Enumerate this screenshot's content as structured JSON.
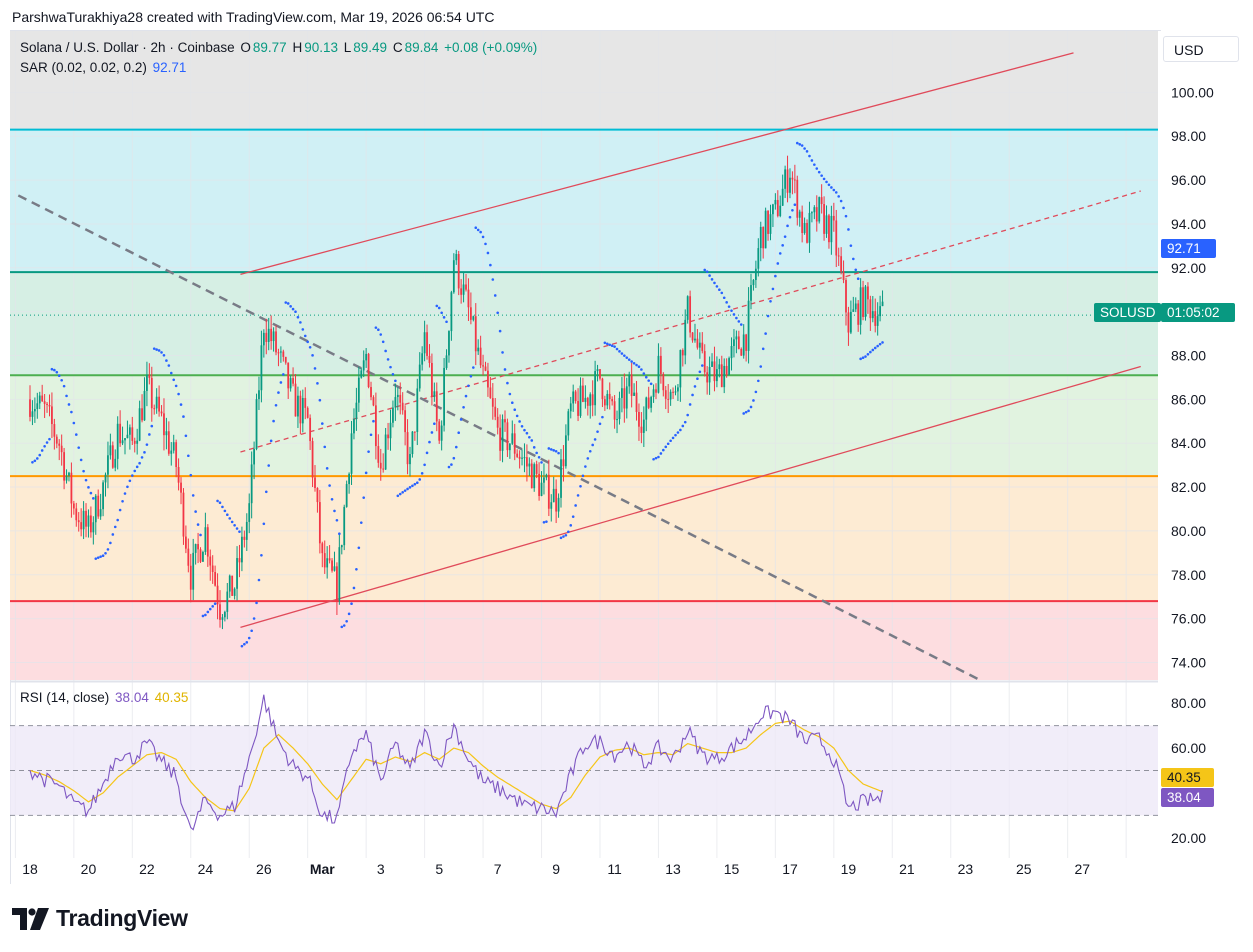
{
  "header": {
    "caption": "ParshwaTurakhiya28 created with TradingView.com, Mar 19, 2026 06:54 UTC"
  },
  "legend": {
    "symbol": "Solana / U.S. Dollar · 2h · Coinbase",
    "o_key": "O",
    "o_val": "89.77",
    "h_key": "H",
    "h_val": "90.13",
    "l_key": "L",
    "l_val": "89.49",
    "c_key": "C",
    "c_val": "89.84",
    "change": "+0.08 (+0.09%)",
    "sar_label": "SAR (0.02, 0.02, 0.2)",
    "sar_val": "92.71",
    "rsi_label": "RSI (14, close)",
    "rsi_val": "38.04",
    "rsi_ma_val": "40.35"
  },
  "currency_button": "USD",
  "price_tags": {
    "sar": "92.71",
    "symbol": "SOLUSD",
    "countdown": "01:05:02",
    "rsi_ma": "40.35",
    "rsi": "38.04"
  },
  "brand": "TradingView",
  "colors": {
    "up": "#089981",
    "down": "#f23645",
    "sar": "#2962ff",
    "rsi": "#7e57c2",
    "rsi_ma": "#f5c518",
    "trend": "#e04a5a"
  },
  "chart_data": [
    {
      "type": "candlestick",
      "symbol": "SOLUSD",
      "interval": "2h",
      "x_tick_labels": [
        "18",
        "20",
        "22",
        "24",
        "26",
        "Mar",
        "3",
        "5",
        "7",
        "9",
        "11",
        "13",
        "15",
        "17",
        "19",
        "21",
        "23",
        "25",
        "27"
      ],
      "y_ticks": [
        74,
        76,
        78,
        80,
        82,
        84,
        86,
        88,
        90,
        92,
        94,
        96,
        98,
        100
      ],
      "y_tick_labels": [
        "74.00",
        "76.00",
        "78.00",
        "80.00",
        "82.00",
        "84.00",
        "86.00",
        "88.00",
        "92.00",
        "94.00",
        "96.00",
        "98.00",
        "100.00"
      ],
      "ylim": [
        73.2,
        102.8
      ],
      "xlim": [
        -0.4,
        38.9
      ],
      "last_price": 89.84,
      "close_path": {
        "x": [
          0,
          0.5,
          1,
          1.5,
          2,
          2.5,
          3,
          3.5,
          4,
          4.5,
          5,
          5.5,
          6,
          6.5,
          7,
          7.5,
          8,
          8.5,
          9,
          9.5,
          10,
          10.5,
          11,
          11.5,
          12,
          12.5,
          13,
          13.5,
          14,
          14.5,
          15,
          15.5,
          16,
          16.5,
          17,
          17.5,
          18,
          18.5,
          19,
          19.5,
          20,
          20.5,
          21,
          21.5,
          22,
          22.5,
          23,
          23.5,
          24,
          24.5,
          25,
          25.5,
          26,
          26.5,
          27,
          27.5,
          28,
          28.5,
          29.2
        ],
        "y": [
          86,
          85.5,
          84,
          81,
          80,
          82,
          84.5,
          84,
          86.5,
          85,
          83,
          78,
          80,
          76.5,
          77.5,
          81,
          89.5,
          88,
          86,
          85,
          78.5,
          77.5,
          84.5,
          88,
          83,
          86.5,
          83,
          89,
          84,
          92.5,
          90,
          87,
          84.5,
          84,
          83,
          82,
          81.5,
          85.5,
          86,
          87,
          85,
          86.5,
          85,
          87.5,
          86,
          90,
          87.5,
          87,
          88,
          89,
          93.5,
          94.5,
          96.5,
          93.5,
          94.5,
          93.5,
          89.5,
          90.5,
          89.8
        ]
      },
      "horizontal_levels": [
        {
          "price": 98.3,
          "color": "#00bcd4"
        },
        {
          "price": 91.8,
          "color": "#089981"
        },
        {
          "price": 87.1,
          "color": "#4caf50"
        },
        {
          "price": 82.5,
          "color": "#ff9800"
        },
        {
          "price": 76.8,
          "color": "#f23645"
        }
      ],
      "zones": [
        {
          "from": 98.3,
          "to": 91.8,
          "color": "#d0f0f5"
        },
        {
          "from": 91.8,
          "to": 87.1,
          "color": "#d6efe4"
        },
        {
          "from": 87.1,
          "to": 82.5,
          "color": "#e1f3e0"
        },
        {
          "from": 82.5,
          "to": 76.8,
          "color": "#fdebd3"
        },
        {
          "from": 76.8,
          "to": 73.2,
          "color": "#fddde0"
        }
      ],
      "trend_lines": [
        {
          "name": "upper channel",
          "x": [
            7.2,
            35.7
          ],
          "y": [
            91.7,
            101.8
          ],
          "style": "solid"
        },
        {
          "name": "lower channel",
          "x": [
            7.2,
            38.0
          ],
          "y": [
            75.6,
            87.5
          ],
          "style": "solid"
        },
        {
          "name": "mid channel",
          "x": [
            7.2,
            38.0
          ],
          "y": [
            83.6,
            95.5
          ],
          "style": "dashed"
        },
        {
          "name": "downtrend",
          "x": [
            -0.4,
            32.5
          ],
          "y": [
            95.3,
            73.2
          ],
          "style": "dashed"
        }
      ]
    },
    {
      "type": "line",
      "title": "RSI (14, close)",
      "y_tick_labels": [
        "20.00",
        "40.00",
        "60.00",
        "80.00"
      ],
      "ylim": [
        11,
        89
      ],
      "bands": [
        30,
        50,
        70
      ],
      "series": [
        {
          "name": "RSI",
          "x": [
            0,
            0.5,
            1,
            1.5,
            2,
            2.5,
            3,
            3.5,
            4,
            4.5,
            5,
            5.5,
            6,
            6.5,
            7,
            7.5,
            8,
            8.5,
            9,
            9.5,
            10,
            10.5,
            11,
            11.5,
            12,
            12.5,
            13,
            13.5,
            14,
            14.5,
            15,
            15.5,
            16,
            16.5,
            17,
            17.5,
            18,
            18.5,
            19,
            19.5,
            20,
            20.5,
            21,
            21.5,
            22,
            22.5,
            23,
            23.5,
            24,
            24.5,
            25,
            25.5,
            26,
            26.5,
            27,
            27.5,
            28,
            28.5,
            29.2
          ],
          "y": [
            50,
            46,
            43,
            35,
            32,
            44,
            58,
            55,
            62,
            54,
            47,
            22,
            37,
            30,
            34,
            55,
            82,
            63,
            52,
            47,
            30,
            28,
            58,
            66,
            45,
            62,
            50,
            67,
            52,
            70,
            55,
            45,
            42,
            38,
            34,
            33,
            31,
            48,
            62,
            63,
            57,
            62,
            52,
            60,
            55,
            68,
            57,
            55,
            60,
            65,
            75,
            76,
            72,
            63,
            64,
            55,
            33,
            36,
            38.04
          ]
        },
        {
          "name": "RSI-based MA",
          "x": [
            0,
            0.5,
            1,
            1.5,
            2,
            2.5,
            3,
            3.5,
            4,
            4.5,
            5,
            5.5,
            6,
            6.5,
            7,
            7.5,
            8,
            8.5,
            9,
            9.5,
            10,
            10.5,
            11,
            11.5,
            12,
            12.5,
            13,
            13.5,
            14,
            14.5,
            15,
            15.5,
            16,
            16.5,
            17,
            17.5,
            18,
            18.5,
            19,
            19.5,
            20,
            20.5,
            21,
            21.5,
            22,
            22.5,
            23,
            23.5,
            24,
            24.5,
            25,
            25.5,
            26,
            26.5,
            27,
            27.5,
            28,
            28.5,
            29.2
          ],
          "y": [
            50,
            48,
            45,
            41,
            36,
            40,
            47,
            52,
            57,
            58,
            55,
            45,
            38,
            33,
            32,
            42,
            60,
            66,
            60,
            53,
            44,
            37,
            46,
            55,
            53,
            56,
            54,
            58,
            55,
            60,
            58,
            52,
            47,
            43,
            39,
            35,
            33,
            38,
            48,
            56,
            59,
            60,
            57,
            58,
            57,
            62,
            60,
            58,
            58,
            60,
            66,
            71,
            72,
            68,
            65,
            60,
            50,
            44,
            40.35
          ]
        }
      ]
    }
  ]
}
